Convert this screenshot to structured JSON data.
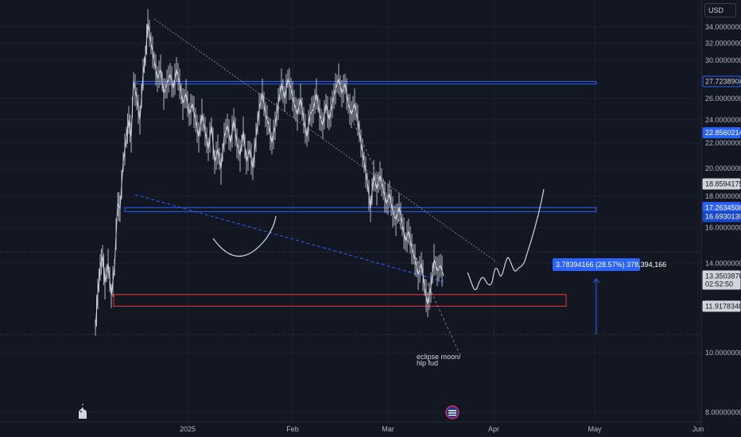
{
  "chart_data": {
    "type": "candlestick",
    "currency": "USD",
    "y_axis": {
      "ticks": [
        "34.00000000",
        "32.00000000",
        "30.00000000",
        "26.00000000",
        "24.00000000",
        "22.00000000",
        "20.00000000",
        "18.00000000",
        "16.00000000",
        "14.00000000",
        "10.00000000",
        "8.00000000"
      ],
      "ylim": [
        7.3,
        35.2
      ],
      "scale": "log"
    },
    "x_axis": {
      "ticks": [
        "2025",
        "Feb",
        "Mar",
        "Apr",
        "May",
        "Jun"
      ]
    },
    "price_tags": [
      {
        "label": "27.72389042",
        "value": 27.72,
        "style": "blue-outline"
      },
      {
        "label": "22.85602140",
        "value": 22.86,
        "style": "blue-fill"
      },
      {
        "label": "18.85941751",
        "value": 18.86,
        "style": "light"
      },
      {
        "label": "17.26345087",
        "value": 17.26,
        "style": "blue-fill"
      },
      {
        "label": "16.69301308",
        "value": 16.69,
        "style": "dark-blue"
      },
      {
        "label": "13.35038708",
        "value": 13.35,
        "style": "light"
      },
      {
        "label": "02:52:50",
        "value": 12.95,
        "style": "light"
      },
      {
        "label": "11.91783466",
        "value": 11.92,
        "style": "light"
      }
    ],
    "measurement_label": "3.78394166 (28.57%) 378,394,166",
    "annotation": "eclipse moon/\nhlp fud",
    "zones": [
      {
        "name": "resistance-box",
        "top": 27.72,
        "bottom": 27.45,
        "color": "#2962ff"
      },
      {
        "name": "support-box",
        "top": 17.26,
        "bottom": 17.0,
        "color": "#2962ff"
      },
      {
        "name": "demand-box",
        "top": 12.45,
        "bottom": 11.92,
        "color": "#f23645"
      }
    ],
    "price_series": [
      {
        "x": 0,
        "y": 11.0
      },
      {
        "x": 3,
        "y": 12.5
      },
      {
        "x": 6,
        "y": 13.8
      },
      {
        "x": 9,
        "y": 14.4
      },
      {
        "x": 12,
        "y": 13.0
      },
      {
        "x": 16,
        "y": 14.0
      },
      {
        "x": 20,
        "y": 12.4
      },
      {
        "x": 24,
        "y": 13.8
      },
      {
        "x": 28,
        "y": 17.5
      },
      {
        "x": 31,
        "y": 17.2
      },
      {
        "x": 35,
        "y": 20.5
      },
      {
        "x": 39,
        "y": 22.5
      },
      {
        "x": 42,
        "y": 24.0
      },
      {
        "x": 45,
        "y": 22.5
      },
      {
        "x": 48,
        "y": 27.8
      },
      {
        "x": 52,
        "y": 26.0
      },
      {
        "x": 56,
        "y": 24.0
      },
      {
        "x": 60,
        "y": 28.5
      },
      {
        "x": 63,
        "y": 30.5
      },
      {
        "x": 66,
        "y": 34.5
      },
      {
        "x": 70,
        "y": 32.0
      },
      {
        "x": 74,
        "y": 30.0
      },
      {
        "x": 78,
        "y": 28.0
      },
      {
        "x": 82,
        "y": 29.0
      },
      {
        "x": 86,
        "y": 26.5
      },
      {
        "x": 90,
        "y": 27.5
      },
      {
        "x": 94,
        "y": 28.5
      },
      {
        "x": 98,
        "y": 27.0
      },
      {
        "x": 102,
        "y": 29.0
      },
      {
        "x": 106,
        "y": 27.5
      },
      {
        "x": 110,
        "y": 25.5
      },
      {
        "x": 114,
        "y": 26.5
      },
      {
        "x": 118,
        "y": 24.5
      },
      {
        "x": 122,
        "y": 25.5
      },
      {
        "x": 126,
        "y": 24.0
      },
      {
        "x": 130,
        "y": 22.5
      },
      {
        "x": 134,
        "y": 24.5
      },
      {
        "x": 138,
        "y": 23.0
      },
      {
        "x": 142,
        "y": 21.5
      },
      {
        "x": 146,
        "y": 23.5
      },
      {
        "x": 150,
        "y": 20.5
      },
      {
        "x": 154,
        "y": 21.5
      },
      {
        "x": 158,
        "y": 20.0
      },
      {
        "x": 162,
        "y": 22.5
      },
      {
        "x": 166,
        "y": 23.5
      },
      {
        "x": 170,
        "y": 22.0
      },
      {
        "x": 174,
        "y": 24.0
      },
      {
        "x": 178,
        "y": 22.0
      },
      {
        "x": 182,
        "y": 21.0
      },
      {
        "x": 186,
        "y": 23.0
      },
      {
        "x": 190,
        "y": 20.5
      },
      {
        "x": 194,
        "y": 21.5
      },
      {
        "x": 198,
        "y": 20.0
      },
      {
        "x": 202,
        "y": 22.5
      },
      {
        "x": 206,
        "y": 25.0
      },
      {
        "x": 210,
        "y": 26.5
      },
      {
        "x": 214,
        "y": 24.5
      },
      {
        "x": 218,
        "y": 23.5
      },
      {
        "x": 222,
        "y": 22.0
      },
      {
        "x": 226,
        "y": 23.5
      },
      {
        "x": 230,
        "y": 25.5
      },
      {
        "x": 234,
        "y": 27.5
      },
      {
        "x": 238,
        "y": 26.0
      },
      {
        "x": 242,
        "y": 28.0
      },
      {
        "x": 246,
        "y": 27.0
      },
      {
        "x": 250,
        "y": 25.5
      },
      {
        "x": 254,
        "y": 24.5
      },
      {
        "x": 258,
        "y": 26.0
      },
      {
        "x": 262,
        "y": 24.0
      },
      {
        "x": 266,
        "y": 22.5
      },
      {
        "x": 270,
        "y": 24.5
      },
      {
        "x": 274,
        "y": 25.0
      },
      {
        "x": 278,
        "y": 26.5
      },
      {
        "x": 282,
        "y": 24.5
      },
      {
        "x": 286,
        "y": 23.5
      },
      {
        "x": 290,
        "y": 25.5
      },
      {
        "x": 294,
        "y": 24.0
      },
      {
        "x": 298,
        "y": 25.5
      },
      {
        "x": 302,
        "y": 27.0
      },
      {
        "x": 306,
        "y": 28.0
      },
      {
        "x": 310,
        "y": 26.5
      },
      {
        "x": 314,
        "y": 27.5
      },
      {
        "x": 318,
        "y": 25.5
      },
      {
        "x": 322,
        "y": 24.5
      },
      {
        "x": 326,
        "y": 25.5
      },
      {
        "x": 330,
        "y": 24.0
      },
      {
        "x": 334,
        "y": 22.0
      },
      {
        "x": 338,
        "y": 20.5
      },
      {
        "x": 342,
        "y": 19.0
      },
      {
        "x": 346,
        "y": 17.2
      },
      {
        "x": 350,
        "y": 19.5
      },
      {
        "x": 354,
        "y": 18.5
      },
      {
        "x": 358,
        "y": 19.5
      },
      {
        "x": 362,
        "y": 18.5
      },
      {
        "x": 366,
        "y": 17.5
      },
      {
        "x": 370,
        "y": 18.2
      },
      {
        "x": 374,
        "y": 17.0
      },
      {
        "x": 378,
        "y": 16.5
      },
      {
        "x": 382,
        "y": 17.3
      },
      {
        "x": 386,
        "y": 16.2
      },
      {
        "x": 390,
        "y": 15.2
      },
      {
        "x": 394,
        "y": 15.8
      },
      {
        "x": 398,
        "y": 14.8
      },
      {
        "x": 402,
        "y": 14.2
      },
      {
        "x": 406,
        "y": 13.4
      },
      {
        "x": 410,
        "y": 14.0
      },
      {
        "x": 414,
        "y": 12.8
      },
      {
        "x": 418,
        "y": 12.0
      },
      {
        "x": 422,
        "y": 12.8
      },
      {
        "x": 426,
        "y": 14.2
      },
      {
        "x": 430,
        "y": 13.6
      },
      {
        "x": 434,
        "y": 13.9
      },
      {
        "x": 438,
        "y": 13.35
      }
    ],
    "colors": {
      "background": "#131722",
      "price_line": "#d1d4dc",
      "blue": "#2962ff",
      "red": "#f23645",
      "grid": "#1e222d",
      "trendline": "#9598a1",
      "projection": "#d1d4dc"
    }
  }
}
